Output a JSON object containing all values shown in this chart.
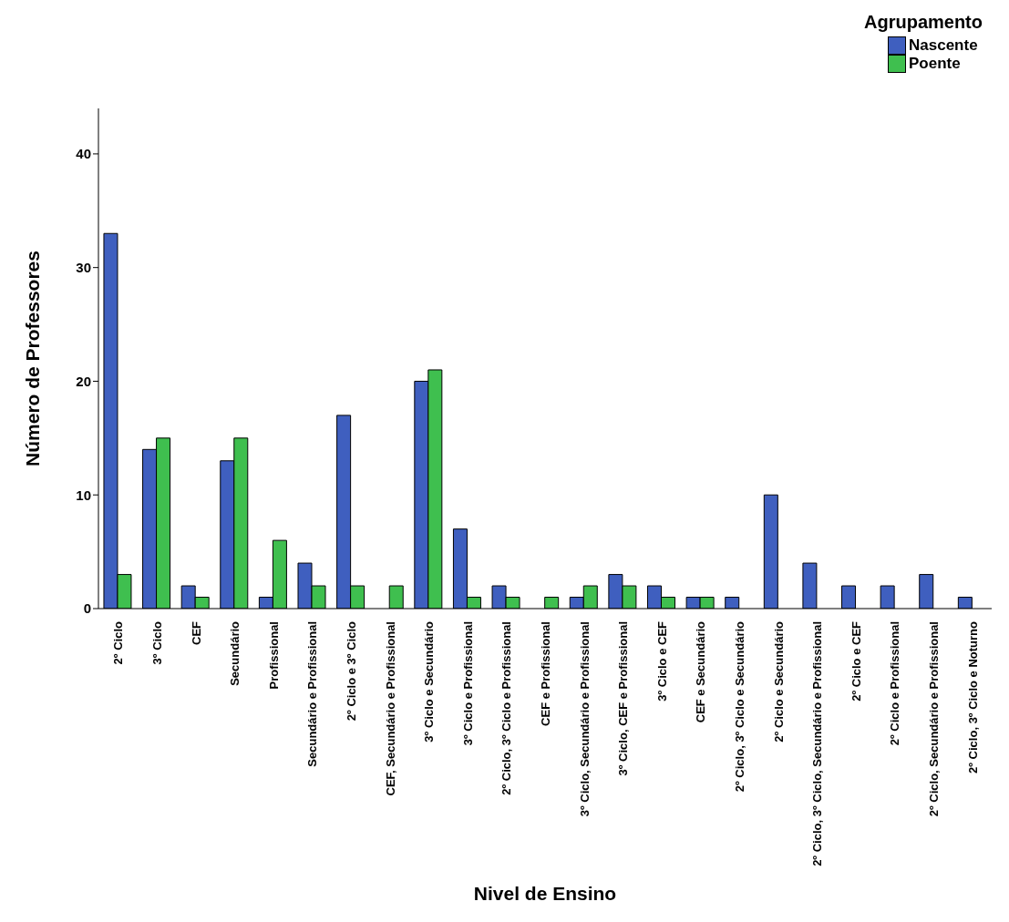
{
  "chart_data": {
    "type": "bar",
    "xlabel": "Nivel de Ensino",
    "ylabel": "Número de Professores",
    "legend_title": "Agrupamento",
    "legend": "top right",
    "grid": false,
    "categories": [
      "2º Ciclo",
      "3º Ciclo",
      "CEF",
      "Secundário",
      "Profissional",
      "Secundário e Profissional",
      "2º Ciclo e 3º Ciclo",
      "CEF, Secundário e Profissional",
      "3º Ciclo e Secundário",
      "3º Ciclo e Profissional",
      "2º Ciclo, 3º Ciclo e Profissional",
      "CEF e Profissional",
      "3º Ciclo, Secundário e Profissional",
      "3º Ciclo, CEF e Profissional",
      "3º Ciclo e CEF",
      "CEF e Secundário",
      "2º Ciclo, 3º Ciclo e Secundário",
      "2º Ciclo e Secundário",
      "2º Ciclo, 3º Ciclo, Secundário e Profissional",
      "2º Ciclo e CEF",
      "2º Ciclo e Profissional",
      "2º Ciclo, Secundário e Profissional",
      "2º Ciclo, 3º Ciclo e Noturno"
    ],
    "series": [
      {
        "name": "Nascente",
        "color": "#3f5fbf",
        "values": [
          33,
          14,
          2,
          13,
          1,
          4,
          17,
          null,
          20,
          7,
          2,
          null,
          1,
          3,
          2,
          1,
          1,
          10,
          4,
          2,
          2,
          3,
          1
        ]
      },
      {
        "name": "Poente",
        "color": "#3fbf4f",
        "values": [
          3,
          15,
          1,
          15,
          6,
          2,
          2,
          2,
          21,
          1,
          1,
          1,
          2,
          2,
          1,
          1,
          null,
          null,
          null,
          null,
          null,
          null,
          null
        ]
      }
    ],
    "ylim": [
      0,
      44
    ],
    "yticks": [
      0,
      10,
      20,
      30,
      40
    ]
  }
}
